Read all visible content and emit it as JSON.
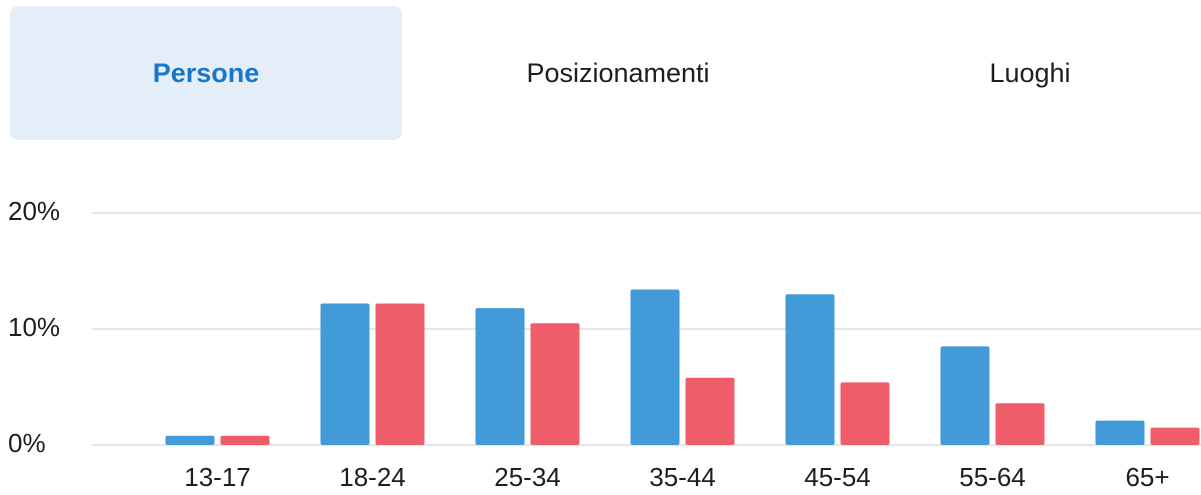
{
  "tabs": [
    "Persone",
    "Posizionamenti",
    "Luoghi"
  ],
  "chart_data": {
    "type": "bar",
    "categories": [
      "13-17",
      "18-24",
      "25-34",
      "35-44",
      "45-54",
      "55-64",
      "65+"
    ],
    "series": [
      {
        "color": "#429ad8",
        "values": [
          0.8,
          12.2,
          11.8,
          13.4,
          13.0,
          8.5,
          2.1
        ]
      },
      {
        "color": "#f05d6a",
        "values": [
          0.8,
          12.2,
          10.5,
          5.8,
          5.4,
          3.6,
          1.5
        ]
      }
    ],
    "ylim": [
      0,
      20
    ],
    "yticks": [
      {
        "value": 0,
        "label": "0%"
      },
      {
        "value": 10,
        "label": "10%"
      },
      {
        "value": 20,
        "label": "20%"
      }
    ],
    "grid": true
  }
}
